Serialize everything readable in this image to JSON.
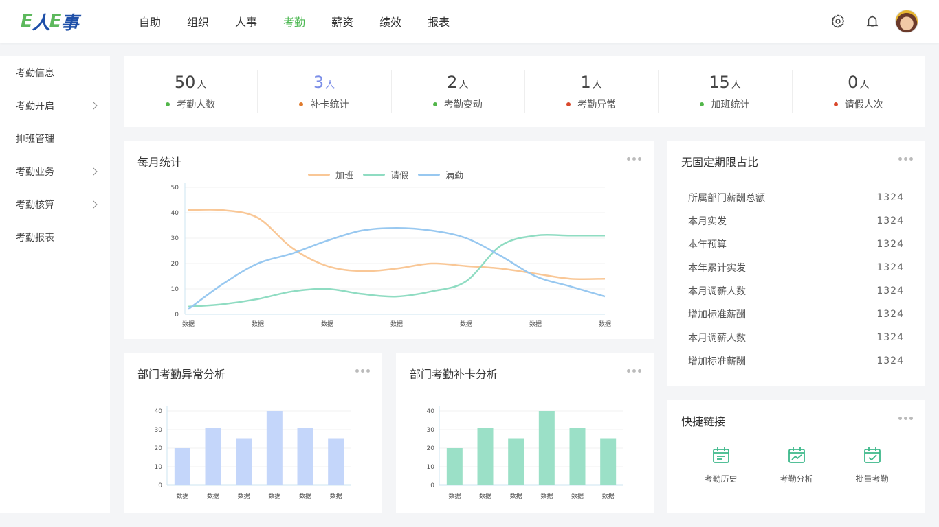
{
  "app": {
    "logo": {
      "e1": "E",
      "ren": "人",
      "e2": "E",
      "shi": "事"
    }
  },
  "nav": {
    "items": [
      "自助",
      "组织",
      "人事",
      "考勤",
      "薪资",
      "绩效",
      "报表"
    ],
    "active_index": 3,
    "active_color": "#4cb852"
  },
  "sidebar": {
    "items": [
      {
        "label": "考勤信息",
        "has_children": false
      },
      {
        "label": "考勤开启",
        "has_children": true
      },
      {
        "label": "排班管理",
        "has_children": false
      },
      {
        "label": "考勤业务",
        "has_children": true
      },
      {
        "label": "考勤核算",
        "has_children": true
      },
      {
        "label": "考勤报表",
        "has_children": false
      }
    ]
  },
  "stats": [
    {
      "value": "50",
      "unit": "人",
      "label": "考勤人数",
      "dot": "#52b64a"
    },
    {
      "value": "3",
      "unit": "人",
      "label": "补卡统计",
      "dot": "#e07b2e"
    },
    {
      "value": "2",
      "unit": "人",
      "label": "考勤变动",
      "dot": "#52b64a"
    },
    {
      "value": "1",
      "unit": "人",
      "label": "考勤异常",
      "dot": "#d9472b"
    },
    {
      "value": "15",
      "unit": "人",
      "label": "加班统计",
      "dot": "#52b64a"
    },
    {
      "value": "0",
      "unit": "人",
      "label": "请假人次",
      "dot": "#d9472b"
    }
  ],
  "monthly": {
    "title": "每月统计"
  },
  "fixed": {
    "title": "无固定期限占比",
    "rows": [
      {
        "k": "所属部门薪酬总额",
        "v": "1324"
      },
      {
        "k": "本月实发",
        "v": "1324"
      },
      {
        "k": "本年预算",
        "v": "1324"
      },
      {
        "k": "本年累计实发",
        "v": "1324"
      },
      {
        "k": "本月调薪人数",
        "v": "1324"
      },
      {
        "k": "增加标准薪酬",
        "v": "1324"
      },
      {
        "k": "本月调薪人数",
        "v": "1324"
      },
      {
        "k": "增加标准薪酬",
        "v": "1324"
      }
    ]
  },
  "abnormal": {
    "title": "部门考勤异常分析"
  },
  "supplement": {
    "title": "部门考勤补卡分析"
  },
  "quick": {
    "title": "快捷链接",
    "links": [
      {
        "label": "考勤历史",
        "icon": "calendar-list-icon"
      },
      {
        "label": "考勤分析",
        "icon": "calendar-chart-icon"
      },
      {
        "label": "批量考勤",
        "icon": "calendar-check-icon"
      }
    ],
    "icon_color": "#3cb88a"
  },
  "chart_data": [
    {
      "type": "line",
      "title": "每月统计",
      "categories": [
        "数据",
        "数据",
        "数据",
        "数据",
        "数据",
        "数据",
        "数据"
      ],
      "x": [
        0,
        0.5,
        1,
        1.5,
        2,
        2.5,
        3,
        3.5,
        4,
        4.5,
        5,
        5.5,
        6
      ],
      "ylim": [
        0,
        50
      ],
      "yticks": [
        0,
        10,
        20,
        30,
        40,
        50
      ],
      "grid": true,
      "legend": "top-center",
      "series": [
        {
          "name": "加班",
          "color": "#f9c796",
          "values": [
            41,
            41,
            38,
            26,
            19,
            17,
            18,
            20,
            19,
            18,
            16,
            14,
            14
          ]
        },
        {
          "name": "请假",
          "color": "#8fdcc2",
          "values": [
            3,
            4,
            6,
            9,
            10,
            8,
            7,
            9,
            13,
            27,
            31,
            31,
            31
          ]
        },
        {
          "name": "满勤",
          "color": "#98c8f0",
          "values": [
            2,
            12,
            20,
            24,
            29,
            33,
            34,
            33,
            30,
            23,
            15,
            11,
            7
          ]
        }
      ]
    },
    {
      "type": "bar",
      "title": "部门考勤异常分析",
      "categories": [
        "数据",
        "数据",
        "数据",
        "数据",
        "数据",
        "数据"
      ],
      "values": [
        20,
        31,
        25,
        40,
        31,
        25
      ],
      "ylim": [
        0,
        40
      ],
      "yticks": [
        0,
        10,
        20,
        30,
        40
      ],
      "color": "#c4d6fa"
    },
    {
      "type": "bar",
      "title": "部门考勤补卡分析",
      "categories": [
        "数据",
        "数据",
        "数据",
        "数据",
        "数据",
        "数据"
      ],
      "values": [
        20,
        31,
        25,
        40,
        31,
        25
      ],
      "ylim": [
        0,
        40
      ],
      "yticks": [
        0,
        10,
        20,
        30,
        40
      ],
      "color": "#9be0c7"
    }
  ]
}
